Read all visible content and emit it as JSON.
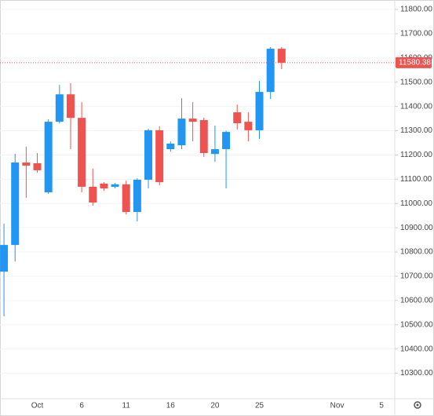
{
  "chart_data": {
    "type": "candlestick",
    "categories": [
      null,
      null,
      null,
      "Oct",
      null,
      null,
      null,
      "6",
      null,
      null,
      null,
      "11",
      null,
      null,
      null,
      "16",
      null,
      null,
      null,
      "20",
      null,
      null,
      null,
      "25",
      null,
      null,
      null,
      null,
      null,
      null,
      "Nov",
      null,
      null,
      null,
      "5"
    ],
    "open": [
      10719,
      10829,
      11169,
      11166,
      11046,
      11337,
      11450,
      11353,
      11069,
      11082,
      11069,
      11079,
      10965,
      11098,
      11302,
      11224,
      11240,
      11350,
      11344,
      11204,
      11224,
      11376,
      11337,
      11302,
      11460,
      11638,
      null,
      null,
      null,
      null,
      null,
      null,
      null,
      null,
      null
    ],
    "high": [
      10917,
      11205,
      11234,
      11208,
      11347,
      11489,
      11496,
      11418,
      11144,
      11088,
      11085,
      11094,
      11104,
      11308,
      11318,
      11256,
      11434,
      11418,
      11354,
      11321,
      11300,
      11408,
      11376,
      11505,
      11645,
      11645,
      null,
      null,
      null,
      null,
      null,
      null,
      null,
      null,
      null
    ],
    "low": [
      10535,
      10761,
      11023,
      11127,
      11040,
      11330,
      11224,
      11046,
      10991,
      11052,
      11062,
      10955,
      10926,
      11062,
      11075,
      11214,
      11224,
      11256,
      11192,
      11172,
      11062,
      11305,
      11256,
      11266,
      11431,
      11554,
      null,
      null,
      null,
      null,
      null,
      null,
      null,
      null,
      null
    ],
    "close": [
      10829,
      11169,
      11156,
      11137,
      11337,
      11450,
      11353,
      11069,
      11004,
      11062,
      11079,
      10965,
      11098,
      11302,
      11088,
      11247,
      11350,
      11337,
      11208,
      11224,
      11295,
      11331,
      11302,
      11460,
      11638,
      11580.38,
      null,
      null,
      null,
      null,
      null,
      null,
      null,
      null,
      null
    ],
    "up_color": "#2196f3",
    "down_color": "#ef5350",
    "last_price": 11580.38,
    "ylim": [
      10195,
      11839
    ],
    "yticks": [
      {
        "value": 10300,
        "label": "10300.00"
      },
      {
        "value": 10400,
        "label": "10400.00"
      },
      {
        "value": 10500,
        "label": "10500.00"
      },
      {
        "value": 10600,
        "label": "10600.00"
      },
      {
        "value": 10700,
        "label": "10700.00"
      },
      {
        "value": 10800,
        "label": "10800.00"
      },
      {
        "value": 10900,
        "label": "10900.00"
      },
      {
        "value": 11000,
        "label": "11000.00"
      },
      {
        "value": 11100,
        "label": "11100.00"
      },
      {
        "value": 11200,
        "label": "11200.00"
      },
      {
        "value": 11300,
        "label": "11300.00"
      },
      {
        "value": 11400,
        "label": "11400.00"
      },
      {
        "value": 11500,
        "label": "11500.00"
      },
      {
        "value": 11600,
        "label": "11600.00"
      },
      {
        "value": 11700,
        "label": "11700.00"
      },
      {
        "value": 11800,
        "label": "11800.00"
      }
    ],
    "grid": true
  }
}
